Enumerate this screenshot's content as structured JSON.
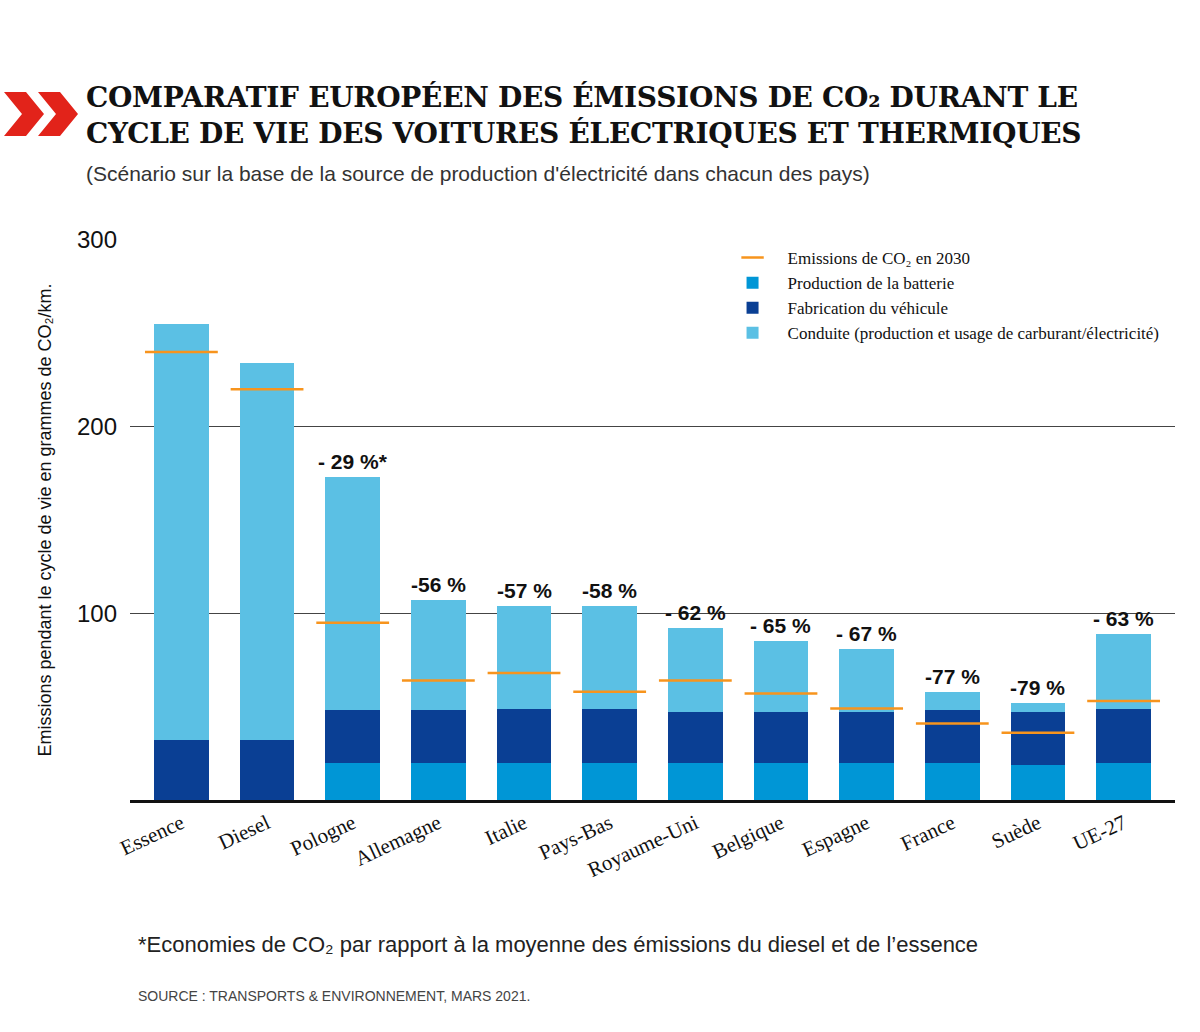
{
  "chart_data": {
    "type": "bar",
    "title": "COMPARATIF EUROPÉEN DES ÉMISSIONS DE CO₂ DURANT LE CYCLE DE VIE DES VOITURES ÉLECTRIQUES ET THERMIQUES",
    "subtitle": "(Scénario sur la base de la source de production d'électricité dans chacun des pays)",
    "footnote": "*Economies de CO₂ par rapport à la moyenne des émissions du diesel et de l’essence",
    "source": "SOURCE : TRANSPORTS & ENVIRONNEMENT, MARS 2021.",
    "y_label": "Emissions pendant le cycle de vie en grammes de CO₂/km.",
    "categories": [
      "Essence",
      "Diesel",
      "Pologne",
      "Allemagne",
      "Italie",
      "Pays-Bas",
      "Royaume-Uni",
      "Belgique",
      "Espagne",
      "France",
      "Suède",
      "UE-27"
    ],
    "annotations": [
      null,
      null,
      "- 29 %*",
      "-56 %",
      "-57 %",
      "-58 %",
      "- 62 %",
      "- 65 %",
      "- 67 %",
      "-77 %",
      "-79 %",
      "- 63 %"
    ],
    "series": [
      {
        "name": "Production de la batterie",
        "color": "#0096d6",
        "type": "bar",
        "values": [
          0,
          0,
          20,
          20,
          20,
          20,
          20,
          20,
          20,
          20,
          19,
          20
        ]
      },
      {
        "name": "Fabrication du véhicule",
        "color": "#0a3f94",
        "type": "bar",
        "values": [
          32,
          32,
          28,
          28,
          29,
          29,
          27,
          27,
          27,
          28,
          28,
          29
        ]
      },
      {
        "name": "Conduite (production et usage de carburant/électricité)",
        "color": "#5bc0e4",
        "type": "bar",
        "values": [
          223,
          202,
          125,
          59,
          55,
          55,
          45,
          38,
          34,
          10,
          5,
          40
        ]
      },
      {
        "name": "Emissions de CO₂ en 2030",
        "color": "#f7941d",
        "type": "scatter",
        "marker": "line",
        "values": [
          240,
          220,
          95,
          64,
          68,
          58,
          64,
          57,
          49,
          41,
          36,
          53
        ]
      }
    ],
    "ylim": [
      0,
      300
    ],
    "yticks": [
      100,
      200,
      300
    ],
    "grid": true,
    "stacked": true,
    "legend": "top right"
  }
}
